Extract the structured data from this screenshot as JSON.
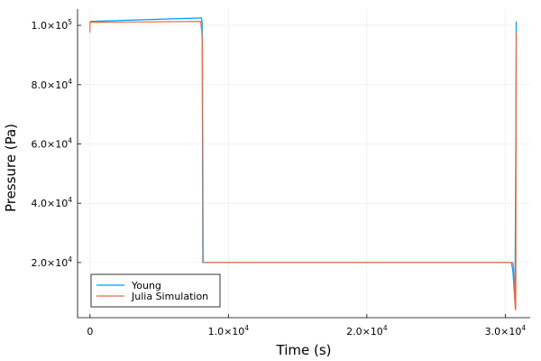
{
  "chart_data": {
    "type": "line",
    "title": "",
    "xlabel": "Time (s)",
    "ylabel": "Pressure (Pa)",
    "xlim": [
      -900,
      31800
    ],
    "ylim": [
      1400,
      105500
    ],
    "grid": true,
    "legend_position": "bottom-left",
    "x_ticks": [
      {
        "value": 0,
        "mant": "0",
        "exp": ""
      },
      {
        "value": 10000,
        "mant": "1.0×10",
        "exp": "4"
      },
      {
        "value": 20000,
        "mant": "2.0×10",
        "exp": "4"
      },
      {
        "value": 30000,
        "mant": "3.0×10",
        "exp": "4"
      }
    ],
    "y_ticks": [
      {
        "value": 20000,
        "mant": "2.0×10",
        "exp": "4"
      },
      {
        "value": 40000,
        "mant": "4.0×10",
        "exp": "4"
      },
      {
        "value": 60000,
        "mant": "6.0×10",
        "exp": "4"
      },
      {
        "value": 80000,
        "mant": "8.0×10",
        "exp": "4"
      },
      {
        "value": 100000,
        "mant": "1.0×10",
        "exp": "5"
      }
    ],
    "series": [
      {
        "name": "Young",
        "color": "#009AFA",
        "x": [
          0,
          8050,
          8100,
          8150,
          8200,
          30450,
          30550,
          30650,
          30700,
          30760,
          30790
        ],
        "y": [
          101325,
          102500,
          101000,
          20000,
          20000,
          20000,
          17000,
          10000,
          7000,
          60000,
          101325
        ]
      },
      {
        "name": "Julia Simulation",
        "color": "#E26F46",
        "x": [
          0,
          0,
          8000,
          8120,
          8180,
          8250,
          30550,
          30600,
          30650,
          30700,
          30730,
          30760,
          30780,
          30800
        ],
        "y": [
          97500,
          101000,
          101325,
          95000,
          20000,
          20000,
          20000,
          18000,
          12000,
          6000,
          4000,
          4500,
          60000,
          97500
        ]
      }
    ]
  }
}
